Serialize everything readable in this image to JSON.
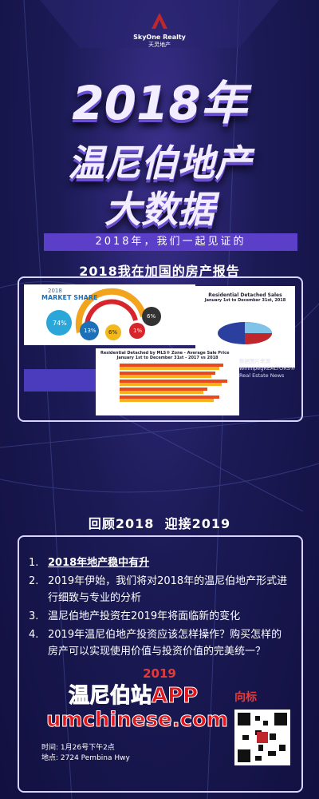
{
  "logo": {
    "name": "SkyOne Realty",
    "name_cn": "天灵地产"
  },
  "hero": {
    "year": "2018年",
    "line1": "温尼伯地产",
    "line2": "大数据"
  },
  "banner": "2018年，我们一起见证的",
  "report_title": "2018我在加国的房产报告",
  "images": {
    "market_share": {
      "year": "2018",
      "title": "MARKET SHARE",
      "labels": [
        "74%",
        "13%",
        "6%",
        "1%",
        "6%"
      ]
    },
    "detached_sales": {
      "title": "Residential Detached Sales",
      "subtitle": "January 1st to December 31st, 2018"
    },
    "avg_price": {
      "title": "Residential Detached by MLS® Zone - Average Sale Price",
      "subtitle": "January 1st to December 31st - 2017 vs 2018"
    },
    "source": [
      "数据图片来源",
      "WinnipegREALTORS®",
      "Real Estate News"
    ]
  },
  "section_title": "回顾2018  迎接2019",
  "agenda": {
    "items": [
      {
        "number": "1.",
        "text": "2018年地产稳中有升"
      },
      {
        "number": "2.",
        "text": "2019年伊始，我们将对2018年的温尼伯地产形式进行细致与专业的分析"
      },
      {
        "number": "3.",
        "text": "温尼伯地产投资在2019年将面临新的变化"
      },
      {
        "number": "4.",
        "text": "2019年温尼伯地产投资应该怎样操作？购买怎样的房产可以实现使用价值与投资价值的完美统一？"
      }
    ]
  },
  "promo": {
    "year": "2019",
    "tag": "向标",
    "app": "温尼伯站APP",
    "site": "umchinese.com"
  },
  "event": {
    "time": "时间: 1月26号下午2点",
    "place": "地点: 2724 Pembina Hwy"
  }
}
